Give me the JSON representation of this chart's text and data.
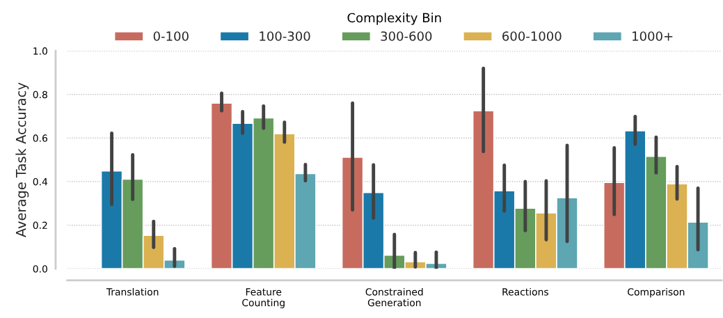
{
  "chart_data": {
    "type": "bar",
    "ylabel": "Average Task Accuracy",
    "legend_title": "Complexity Bin",
    "legend": "top",
    "categories": [
      "Translation",
      "Feature\nCounting",
      "Constrained\nGeneration",
      "Reactions",
      "Comparison"
    ],
    "ylim": [
      0,
      1.0
    ],
    "yticks": [
      {
        "value": 0,
        "label": "0.0"
      },
      0.2,
      0.4,
      0.6,
      0.8,
      {
        "value": 1.0,
        "label": "1.0"
      }
    ],
    "grid": "y",
    "series": [
      {
        "name": "0-100",
        "color": "#c76b5e",
        "values": [
          null,
          0.76,
          0.512,
          0.725,
          0.396
        ],
        "errors": [
          null,
          [
            0.725,
            0.806
          ],
          [
            0.27,
            0.76
          ],
          [
            0.538,
            0.92
          ],
          [
            0.249,
            0.555
          ]
        ]
      },
      {
        "name": "100-300",
        "color": "#1a79a8",
        "values": [
          0.449,
          0.668,
          0.35,
          0.358,
          0.633
        ],
        "errors": [
          [
            0.295,
            0.622
          ],
          [
            0.622,
            0.721
          ],
          [
            0.232,
            0.477
          ],
          [
            0.265,
            0.475
          ],
          [
            0.571,
            0.699
          ]
        ]
      },
      {
        "name": "300-600",
        "color": "#669c5c",
        "values": [
          0.411,
          0.692,
          0.062,
          0.278,
          0.516
        ],
        "errors": [
          [
            0.318,
            0.523
          ],
          [
            0.645,
            0.747
          ],
          [
            0.0,
            0.157
          ],
          [
            0.175,
            0.4
          ],
          [
            0.44,
            0.604
          ]
        ]
      },
      {
        "name": "600-1000",
        "color": "#dbb152",
        "values": [
          0.153,
          0.62,
          0.032,
          0.256,
          0.39
        ],
        "errors": [
          [
            0.098,
            0.217
          ],
          [
            0.581,
            0.672
          ],
          [
            0.008,
            0.074
          ],
          [
            0.133,
            0.403
          ],
          [
            0.32,
            0.469
          ]
        ]
      },
      {
        "name": "1000+",
        "color": "#5da6b2",
        "values": [
          0.04,
          0.437,
          0.025,
          0.326,
          0.214
        ],
        "errors": [
          [
            0.011,
            0.092
          ],
          [
            0.404,
            0.478
          ],
          [
            0.0,
            0.076
          ],
          [
            0.125,
            0.566
          ],
          [
            0.087,
            0.37
          ]
        ]
      }
    ]
  }
}
